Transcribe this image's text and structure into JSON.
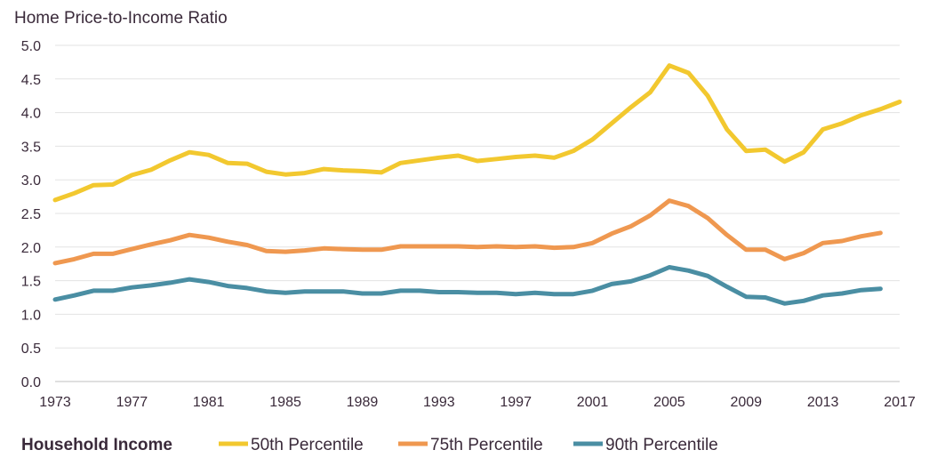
{
  "chart_data": {
    "type": "line",
    "title": "Home Price-to-Income Ratio",
    "xlabel": "",
    "ylabel": "",
    "ylim": [
      0,
      5
    ],
    "xlim": [
      1973,
      2017
    ],
    "y_ticks": [
      "0.0",
      "0.5",
      "1.0",
      "1.5",
      "2.0",
      "2.5",
      "3.0",
      "3.5",
      "4.0",
      "4.5",
      "5.0"
    ],
    "x_ticks": [
      "1973",
      "1977",
      "1981",
      "1985",
      "1989",
      "1993",
      "1997",
      "2001",
      "2005",
      "2009",
      "2013",
      "2017"
    ],
    "grid": "horizontal",
    "legend": {
      "title": "Household Income",
      "position": "bottom"
    },
    "series": [
      {
        "name": "50th Percentile",
        "color": "#f2c82f",
        "x": [
          1973,
          1974,
          1975,
          1976,
          1977,
          1978,
          1979,
          1980,
          1981,
          1982,
          1983,
          1984,
          1985,
          1986,
          1987,
          1988,
          1989,
          1990,
          1991,
          1992,
          1993,
          1994,
          1995,
          1996,
          1997,
          1998,
          1999,
          2000,
          2001,
          2002,
          2003,
          2004,
          2005,
          2006,
          2007,
          2008,
          2009,
          2010,
          2011,
          2012,
          2013,
          2014,
          2015,
          2016,
          2017
        ],
        "values": [
          2.7,
          2.8,
          2.92,
          2.93,
          3.07,
          3.15,
          3.29,
          3.41,
          3.37,
          3.25,
          3.24,
          3.12,
          3.08,
          3.1,
          3.16,
          3.14,
          3.13,
          3.11,
          3.25,
          3.29,
          3.33,
          3.36,
          3.28,
          3.31,
          3.34,
          3.36,
          3.33,
          3.43,
          3.6,
          3.84,
          4.08,
          4.3,
          4.7,
          4.59,
          4.25,
          3.75,
          3.43,
          3.45,
          3.27,
          3.41,
          3.75,
          3.84,
          3.96,
          4.05,
          4.16
        ]
      },
      {
        "name": "75th Percentile",
        "color": "#ef9850",
        "x": [
          1973,
          1974,
          1975,
          1976,
          1977,
          1978,
          1979,
          1980,
          1981,
          1982,
          1983,
          1984,
          1985,
          1986,
          1987,
          1988,
          1989,
          1990,
          1991,
          1992,
          1993,
          1994,
          1995,
          1996,
          1997,
          1998,
          1999,
          2000,
          2001,
          2002,
          2003,
          2004,
          2005,
          2006,
          2007,
          2008,
          2009,
          2010,
          2011,
          2012,
          2013,
          2014,
          2015,
          2016
        ],
        "values": [
          1.76,
          1.82,
          1.9,
          1.9,
          1.97,
          2.04,
          2.1,
          2.18,
          2.14,
          2.08,
          2.03,
          1.94,
          1.93,
          1.95,
          1.98,
          1.97,
          1.96,
          1.96,
          2.01,
          2.01,
          2.01,
          2.01,
          2.0,
          2.01,
          2.0,
          2.01,
          1.99,
          2.0,
          2.06,
          2.2,
          2.31,
          2.47,
          2.69,
          2.61,
          2.43,
          2.18,
          1.96,
          1.96,
          1.82,
          1.91,
          2.06,
          2.09,
          2.16,
          2.21
        ]
      },
      {
        "name": "90th Percentile",
        "color": "#4a8ea3",
        "x": [
          1973,
          1974,
          1975,
          1976,
          1977,
          1978,
          1979,
          1980,
          1981,
          1982,
          1983,
          1984,
          1985,
          1986,
          1987,
          1988,
          1989,
          1990,
          1991,
          1992,
          1993,
          1994,
          1995,
          1996,
          1997,
          1998,
          1999,
          2000,
          2001,
          2002,
          2003,
          2004,
          2005,
          2006,
          2007,
          2008,
          2009,
          2010,
          2011,
          2012,
          2013,
          2014,
          2015,
          2016
        ],
        "values": [
          1.22,
          1.28,
          1.35,
          1.35,
          1.4,
          1.43,
          1.47,
          1.52,
          1.48,
          1.42,
          1.39,
          1.34,
          1.32,
          1.34,
          1.34,
          1.34,
          1.31,
          1.31,
          1.35,
          1.35,
          1.33,
          1.33,
          1.32,
          1.32,
          1.3,
          1.32,
          1.3,
          1.3,
          1.35,
          1.45,
          1.49,
          1.58,
          1.7,
          1.65,
          1.57,
          1.41,
          1.26,
          1.25,
          1.16,
          1.2,
          1.28,
          1.31,
          1.36,
          1.38
        ]
      }
    ]
  }
}
